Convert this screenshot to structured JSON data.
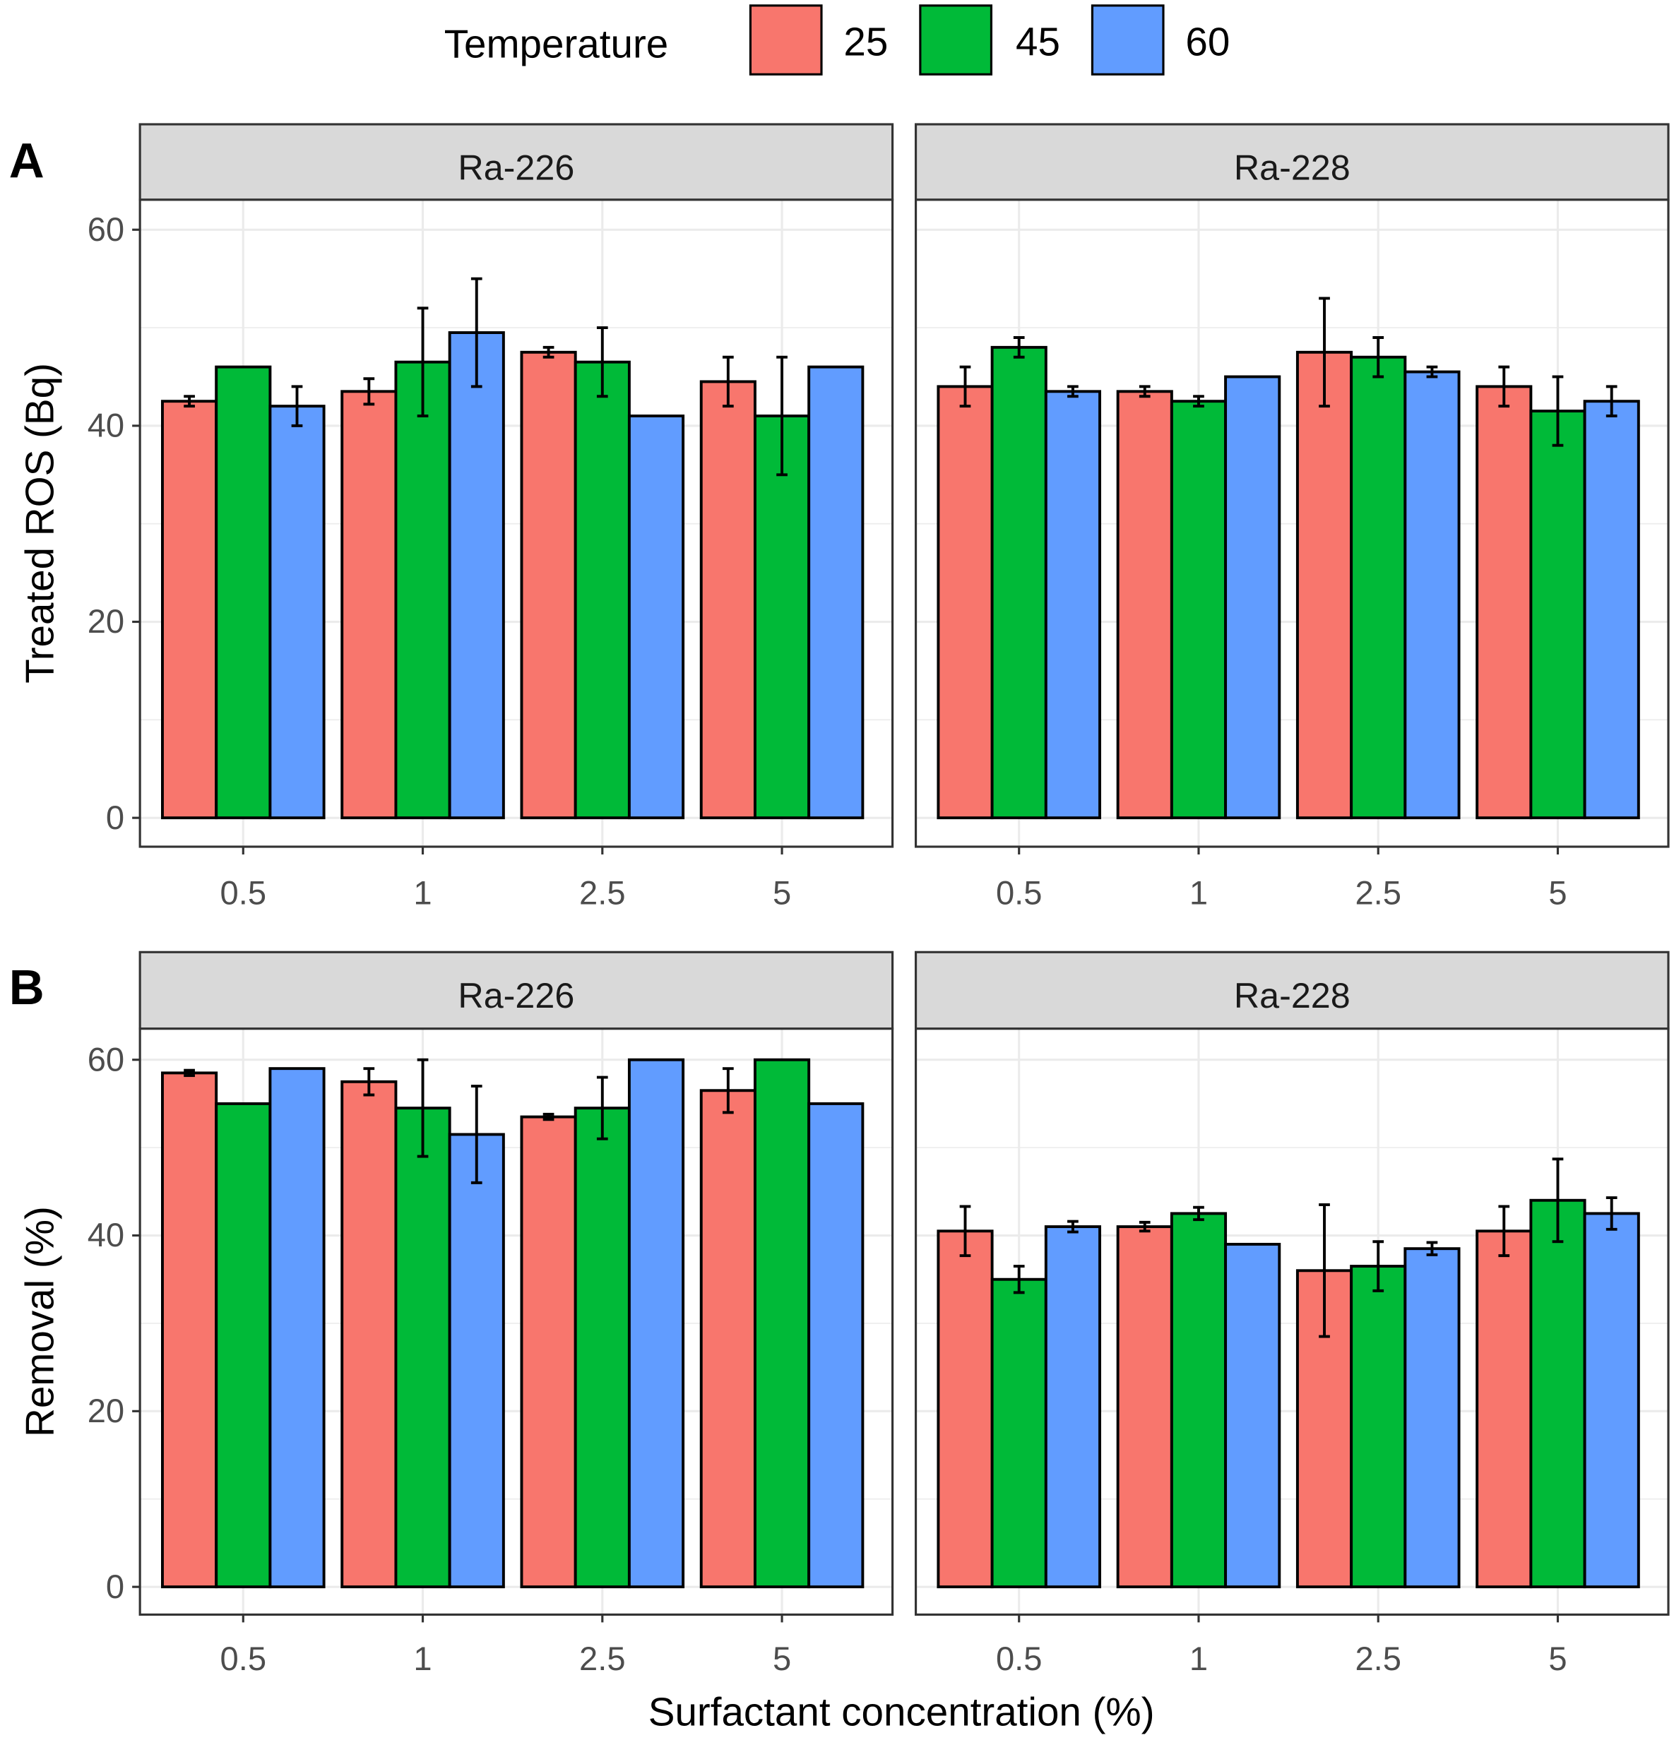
{
  "legend": {
    "title": "Temperature",
    "items": [
      {
        "label": "25",
        "color": "#F8766D"
      },
      {
        "label": "45",
        "color": "#00BA38"
      },
      {
        "label": "60",
        "color": "#619CFF"
      }
    ]
  },
  "xlabel": "Surfactant concentration (%)",
  "chart_data": [
    {
      "type": "bar",
      "panel_label": "A",
      "ylabel": "Treated ROS (Bq)",
      "ylim": [
        0,
        60
      ],
      "yticks": [
        "0",
        "20",
        "40",
        "60"
      ],
      "categories": [
        "0.5",
        "1",
        "2.5",
        "5"
      ],
      "facets": [
        {
          "title": "Ra-226",
          "series": [
            {
              "name": "25",
              "values": [
                42.5,
                43.5,
                47.5,
                44.5
              ],
              "errors": [
                0.5,
                1.3,
                0.5,
                2.5
              ]
            },
            {
              "name": "45",
              "values": [
                46,
                46.5,
                46.5,
                41
              ],
              "errors": [
                0,
                5.5,
                3.5,
                6
              ]
            },
            {
              "name": "60",
              "values": [
                42,
                49.5,
                41,
                46
              ],
              "errors": [
                2,
                5.5,
                0,
                0
              ]
            }
          ]
        },
        {
          "title": "Ra-228",
          "series": [
            {
              "name": "25",
              "values": [
                44,
                43.5,
                47.5,
                44
              ],
              "errors": [
                2,
                0.5,
                5.5,
                2
              ]
            },
            {
              "name": "45",
              "values": [
                48,
                42.5,
                47,
                41.5
              ],
              "errors": [
                1,
                0.5,
                2,
                3.5
              ]
            },
            {
              "name": "60",
              "values": [
                43.5,
                45,
                45.5,
                42.5
              ],
              "errors": [
                0.5,
                0,
                0.5,
                1.5
              ]
            }
          ]
        }
      ]
    },
    {
      "type": "bar",
      "panel_label": "B",
      "ylabel": "Removal (%)",
      "ylim": [
        0,
        60
      ],
      "yticks": [
        "0",
        "20",
        "40",
        "60"
      ],
      "categories": [
        "0.5",
        "1",
        "2.5",
        "5"
      ],
      "facets": [
        {
          "title": "Ra-226",
          "series": [
            {
              "name": "25",
              "values": [
                58.5,
                57.5,
                53.5,
                56.5
              ],
              "errors": [
                0.3,
                1.5,
                0.3,
                2.5
              ]
            },
            {
              "name": "45",
              "values": [
                55,
                54.5,
                54.5,
                60
              ],
              "errors": [
                0,
                5.5,
                3.5,
                0
              ]
            },
            {
              "name": "60",
              "values": [
                59,
                51.5,
                60,
                55
              ],
              "errors": [
                0,
                5.5,
                0,
                0
              ]
            }
          ]
        },
        {
          "title": "Ra-228",
          "series": [
            {
              "name": "25",
              "values": [
                40.5,
                41,
                36,
                40.5
              ],
              "errors": [
                2.8,
                0.5,
                7.5,
                2.8
              ]
            },
            {
              "name": "45",
              "values": [
                35,
                42.5,
                36.5,
                44
              ],
              "errors": [
                1.5,
                0.7,
                2.8,
                4.7
              ]
            },
            {
              "name": "60",
              "values": [
                41,
                39,
                38.5,
                42.5
              ],
              "errors": [
                0.6,
                0,
                0.7,
                1.8
              ]
            }
          ]
        }
      ]
    }
  ]
}
